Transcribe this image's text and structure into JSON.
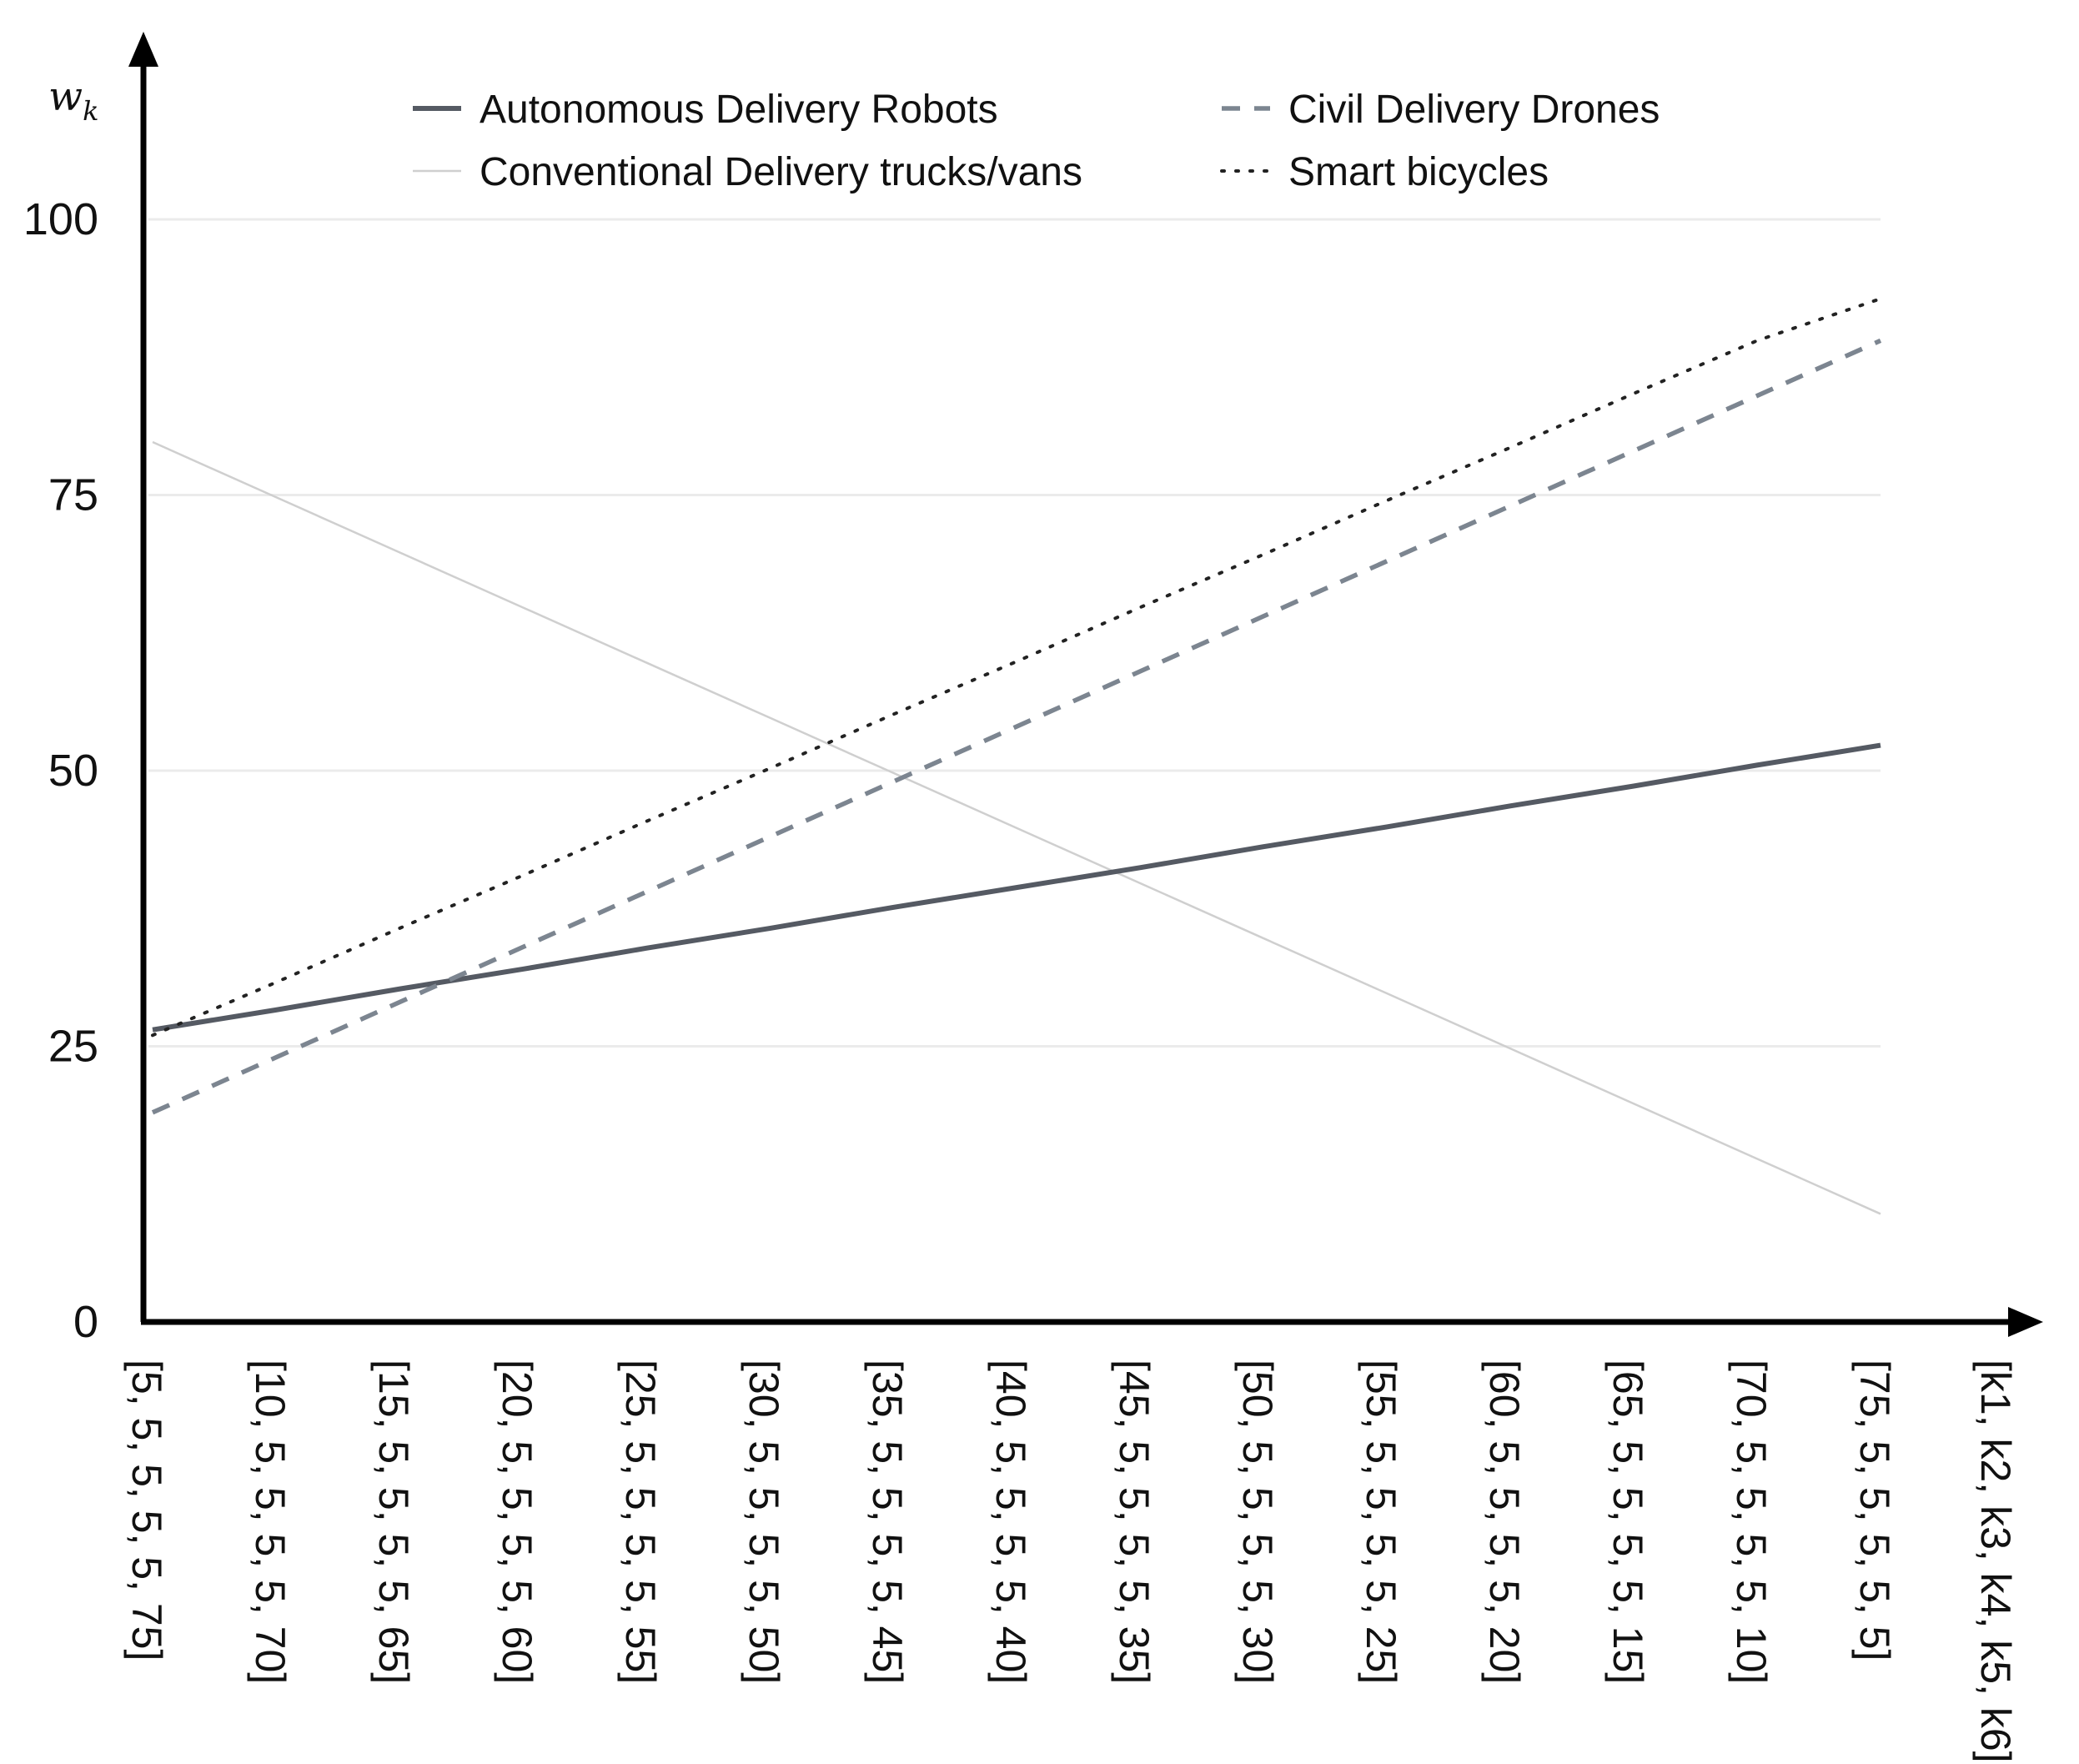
{
  "chart_data": {
    "type": "line",
    "ylabel": "w",
    "ylabel_sub": "k",
    "xlabel": "[k1, k2, k3, k4, k5, k6]",
    "ylim": [
      0,
      100
    ],
    "yticks": [
      0,
      25,
      50,
      75,
      100
    ],
    "grid": "horizontal",
    "legend_position": "top",
    "categories": [
      "[5, 5, 5, 5, 5, 75]",
      "[10, 5, 5, 5, 5, 70]",
      "[15, 5, 5, 5, 5, 65]",
      "[20, 5, 5, 5, 5, 60]",
      "[25, 5, 5, 5, 5, 55]",
      "[30, 5, 5, 5, 5, 50]",
      "[35, 5, 5, 5, 5, 45]",
      "[40, 5, 5, 5, 5, 40]",
      "[45, 5, 5, 5, 5, 35]",
      "[50, 5, 5, 5, 5, 30]",
      "[55, 5, 5, 5, 5, 25]",
      "[60, 5, 5, 5, 5, 20]",
      "[65, 5, 5, 5, 5, 15]",
      "[70, 5, 5, 5, 5, 10]",
      "[75, 5, 5, 5, 5, 5]"
    ],
    "series": [
      {
        "name": "Autonomous Delivery Robots",
        "color": "#555a63",
        "style": "solid",
        "values": [
          26.5,
          28.3,
          30.2,
          32.0,
          33.9,
          35.7,
          37.6,
          39.4,
          41.2,
          43.1,
          44.9,
          46.8,
          48.6,
          50.5,
          52.3
        ]
      },
      {
        "name": "Civil Delivery Drones",
        "color": "#7c8590",
        "style": "dashed",
        "values": [
          19.0,
          24.0,
          29.0,
          34.0,
          39.0,
          44.0,
          49.0,
          54.0,
          59.0,
          64.0,
          69.0,
          74.0,
          79.0,
          84.0,
          89.0
        ]
      },
      {
        "name": "Conventional Delivery trucks/vans",
        "color": "#cfcfcf",
        "style": "solid-thin",
        "values": [
          79.8,
          74.8,
          69.8,
          64.8,
          59.8,
          54.8,
          49.8,
          44.8,
          39.8,
          34.8,
          29.8,
          24.8,
          19.8,
          14.8,
          9.8
        ]
      },
      {
        "name": "Smart bicycles",
        "color": "#222222",
        "style": "dotted",
        "values": [
          26.0,
          30.8,
          35.7,
          40.5,
          45.4,
          50.2,
          55.1,
          59.9,
          64.8,
          69.6,
          74.5,
          79.3,
          84.2,
          89.0,
          92.8
        ]
      }
    ]
  }
}
